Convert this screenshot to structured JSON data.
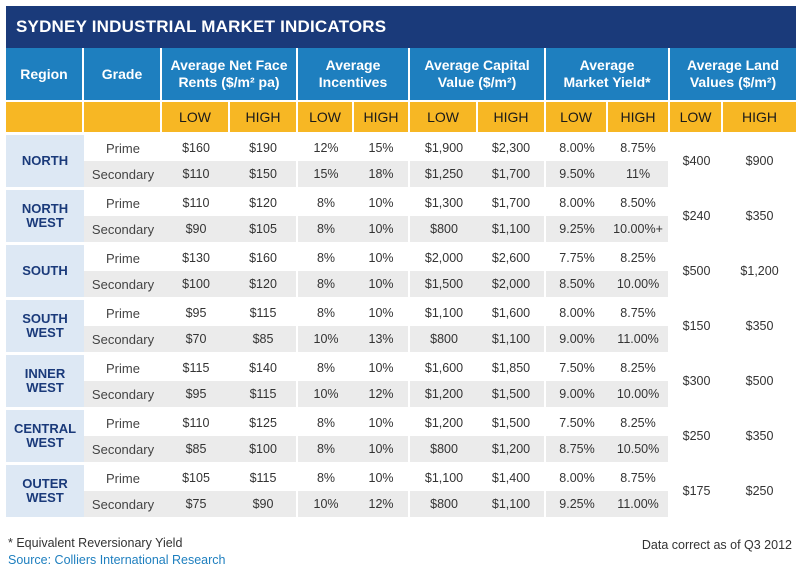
{
  "title": "SYDNEY INDUSTRIAL MARKET INDICATORS",
  "headers": {
    "region": "Region",
    "grade": "Grade",
    "rents_l1": "Average Net Face",
    "rents_l2": "Rents ($/m² pa)",
    "incent_l1": "Average",
    "incent_l2": "Incentives",
    "capital_l1": "Average Capital",
    "capital_l2": "Value ($/m²)",
    "yield_l1": "Average",
    "yield_l2": "Market Yield*",
    "land_l1": "Average Land",
    "land_l2": "Values ($/m²)"
  },
  "sub": {
    "low": "LOW",
    "high": "HIGH"
  },
  "rows": [
    {
      "region_l1": "NORTH",
      "region_l2": "",
      "land_low": "$400",
      "land_high": "$900",
      "prime": {
        "grade": "Prime",
        "v": [
          "$160",
          "$190",
          "12%",
          "15%",
          "$1,900",
          "$2,300",
          "8.00%",
          "8.75%"
        ]
      },
      "secondary": {
        "grade": "Secondary",
        "v": [
          "$110",
          "$150",
          "15%",
          "18%",
          "$1,250",
          "$1,700",
          "9.50%",
          "11%"
        ]
      }
    },
    {
      "region_l1": "NORTH",
      "region_l2": "WEST",
      "land_low": "$240",
      "land_high": "$350",
      "prime": {
        "grade": "Prime",
        "v": [
          "$110",
          "$120",
          "8%",
          "10%",
          "$1,300",
          "$1,700",
          "8.00%",
          "8.50%"
        ]
      },
      "secondary": {
        "grade": "Secondary",
        "v": [
          "$90",
          "$105",
          "8%",
          "10%",
          "$800",
          "$1,100",
          "9.25%",
          "10.00%+"
        ]
      }
    },
    {
      "region_l1": "SOUTH",
      "region_l2": "",
      "land_low": "$500",
      "land_high": "$1,200",
      "prime": {
        "grade": "Prime",
        "v": [
          "$130",
          "$160",
          "8%",
          "10%",
          "$2,000",
          "$2,600",
          "7.75%",
          "8.25%"
        ]
      },
      "secondary": {
        "grade": "Secondary",
        "v": [
          "$100",
          "$120",
          "8%",
          "10%",
          "$1,500",
          "$2,000",
          "8.50%",
          "10.00%"
        ]
      }
    },
    {
      "region_l1": "SOUTH",
      "region_l2": "WEST",
      "land_low": "$150",
      "land_high": "$350",
      "prime": {
        "grade": "Prime",
        "v": [
          "$95",
          "$115",
          "8%",
          "10%",
          "$1,100",
          "$1,600",
          "8.00%",
          "8.75%"
        ]
      },
      "secondary": {
        "grade": "Secondary",
        "v": [
          "$70",
          "$85",
          "10%",
          "13%",
          "$800",
          "$1,100",
          "9.00%",
          "11.00%"
        ]
      }
    },
    {
      "region_l1": "INNER",
      "region_l2": "WEST",
      "land_low": "$300",
      "land_high": "$500",
      "prime": {
        "grade": "Prime",
        "v": [
          "$115",
          "$140",
          "8%",
          "10%",
          "$1,600",
          "$1,850",
          "7.50%",
          "8.25%"
        ]
      },
      "secondary": {
        "grade": "Secondary",
        "v": [
          "$95",
          "$115",
          "10%",
          "12%",
          "$1,200",
          "$1,500",
          "9.00%",
          "10.00%"
        ]
      }
    },
    {
      "region_l1": "CENTRAL",
      "region_l2": "WEST",
      "land_low": "$250",
      "land_high": "$350",
      "prime": {
        "grade": "Prime",
        "v": [
          "$110",
          "$125",
          "8%",
          "10%",
          "$1,200",
          "$1,500",
          "7.50%",
          "8.25%"
        ]
      },
      "secondary": {
        "grade": "Secondary",
        "v": [
          "$85",
          "$100",
          "8%",
          "10%",
          "$800",
          "$1,200",
          "8.75%",
          "10.50%"
        ]
      }
    },
    {
      "region_l1": "OUTER",
      "region_l2": "WEST",
      "land_low": "$175",
      "land_high": "$250",
      "prime": {
        "grade": "Prime",
        "v": [
          "$105",
          "$115",
          "8%",
          "10%",
          "$1,100",
          "$1,400",
          "8.00%",
          "8.75%"
        ]
      },
      "secondary": {
        "grade": "Secondary",
        "v": [
          "$75",
          "$90",
          "10%",
          "12%",
          "$800",
          "$1,100",
          "9.25%",
          "11.00%"
        ]
      }
    }
  ],
  "footnote": "* Equivalent Reversionary Yield",
  "source": "Source: Colliers International Research",
  "data_correct": "Data correct as of Q3 2012",
  "colors": {
    "title_bg": "#1a3a7a",
    "header_bg": "#1e7fbf",
    "subheader_bg": "#f7b724",
    "region_bg": "#dde8f4",
    "alt_row_bg": "#ebebeb"
  }
}
